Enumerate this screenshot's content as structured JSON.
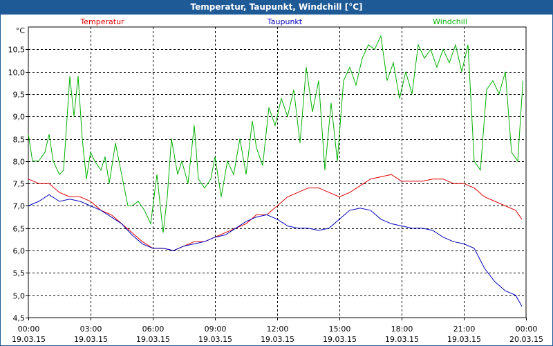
{
  "window": {
    "title": "Temperatur, Taupunkt, Windchill [°C]"
  },
  "chart_data": {
    "type": "line",
    "unit_label": "°C",
    "ylim": [
      4.5,
      11.0
    ],
    "y_ticks": [
      "4,5",
      "5,0",
      "5,5",
      "6,0",
      "6,5",
      "7,0",
      "7,5",
      "8,0",
      "8,5",
      "9,0",
      "9,5",
      "10,0",
      "10,5"
    ],
    "y_tick_values": [
      4.5,
      5.0,
      5.5,
      6.0,
      6.5,
      7.0,
      7.5,
      8.0,
      8.5,
      9.0,
      9.5,
      10.0,
      10.5
    ],
    "x_range_hours": [
      0,
      24
    ],
    "x_ticks": [
      {
        "time": "00:00",
        "date": "19.03.15"
      },
      {
        "time": "03:00",
        "date": "19.03.15"
      },
      {
        "time": "06:00",
        "date": "19.03.15"
      },
      {
        "time": "09:00",
        "date": "19.03.15"
      },
      {
        "time": "12:00",
        "date": "19.03.15"
      },
      {
        "time": "15:00",
        "date": "19.03.15"
      },
      {
        "time": "18:00",
        "date": "19.03.15"
      },
      {
        "time": "21:00",
        "date": "19.03.15"
      },
      {
        "time": "00:00",
        "date": "20.03.15"
      }
    ],
    "grid": true,
    "legend_placement": "top",
    "series": [
      {
        "name": "Temperatur",
        "color": "#e00000",
        "x": [
          0,
          0.5,
          1,
          1.5,
          2,
          2.5,
          3,
          3.5,
          4,
          4.5,
          5,
          5.5,
          6,
          6.5,
          7,
          7.5,
          8,
          8.5,
          9,
          9.5,
          10,
          10.5,
          11,
          11.5,
          12,
          12.5,
          13,
          13.5,
          14,
          14.5,
          15,
          15.5,
          16,
          16.5,
          17,
          17.5,
          18,
          18.5,
          19,
          19.5,
          20,
          20.5,
          21,
          21.5,
          22,
          22.5,
          23,
          23.5,
          23.8
        ],
        "y": [
          7.6,
          7.5,
          7.5,
          7.3,
          7.2,
          7.2,
          7.1,
          6.9,
          6.8,
          6.6,
          6.4,
          6.2,
          6.05,
          6.05,
          6.0,
          6.1,
          6.2,
          6.2,
          6.3,
          6.4,
          6.5,
          6.6,
          6.8,
          6.8,
          7.0,
          7.2,
          7.3,
          7.4,
          7.4,
          7.3,
          7.2,
          7.3,
          7.45,
          7.6,
          7.65,
          7.7,
          7.55,
          7.55,
          7.55,
          7.6,
          7.6,
          7.5,
          7.5,
          7.4,
          7.2,
          7.1,
          7.0,
          6.9,
          6.7
        ]
      },
      {
        "name": "Taupunkt",
        "color": "#0000c0",
        "x": [
          0,
          0.5,
          1,
          1.5,
          2,
          2.5,
          3,
          3.5,
          4,
          4.5,
          5,
          5.5,
          6,
          6.5,
          7,
          7.5,
          8,
          8.5,
          9,
          9.5,
          10,
          10.5,
          11,
          11.5,
          12,
          12.5,
          13,
          13.5,
          14,
          14.5,
          15,
          15.5,
          16,
          16.5,
          17,
          17.5,
          18,
          18.5,
          19,
          19.5,
          20,
          20.5,
          21,
          21.5,
          22,
          22.5,
          23,
          23.5,
          23.8
        ],
        "y": [
          7.0,
          7.1,
          7.25,
          7.1,
          7.15,
          7.1,
          7.0,
          6.9,
          6.75,
          6.6,
          6.35,
          6.15,
          6.05,
          6.05,
          6.0,
          6.1,
          6.15,
          6.2,
          6.3,
          6.35,
          6.5,
          6.65,
          6.75,
          6.8,
          6.7,
          6.55,
          6.5,
          6.5,
          6.45,
          6.5,
          6.7,
          6.9,
          6.95,
          6.9,
          6.7,
          6.6,
          6.55,
          6.5,
          6.5,
          6.45,
          6.3,
          6.2,
          6.15,
          6.05,
          5.6,
          5.3,
          5.1,
          5.0,
          4.75
        ]
      },
      {
        "name": "Windchill",
        "color": "#00b000",
        "x": [
          0,
          0.2,
          0.5,
          0.8,
          1,
          1.2,
          1.5,
          1.7,
          2,
          2.2,
          2.4,
          2.6,
          2.8,
          3,
          3.2,
          3.5,
          3.7,
          3.9,
          4.2,
          4.5,
          4.8,
          5,
          5.3,
          5.6,
          5.9,
          6.2,
          6.5,
          6.7,
          6.9,
          7.2,
          7.4,
          7.7,
          8,
          8.2,
          8.5,
          8.8,
          9,
          9.3,
          9.6,
          9.9,
          10.2,
          10.5,
          10.8,
          11,
          11.3,
          11.6,
          11.9,
          12.2,
          12.5,
          12.8,
          13.1,
          13.4,
          13.7,
          14,
          14.3,
          14.6,
          14.9,
          15.2,
          15.5,
          15.8,
          16.1,
          16.4,
          16.7,
          17,
          17.3,
          17.6,
          17.9,
          18.2,
          18.5,
          18.8,
          19.1,
          19.4,
          19.7,
          20,
          20.3,
          20.6,
          20.9,
          21.2,
          21.5,
          21.8,
          22.1,
          22.4,
          22.7,
          23,
          23.3,
          23.6,
          23.85
        ],
        "y": [
          8.6,
          8.0,
          8.0,
          8.2,
          8.6,
          8.0,
          7.7,
          7.8,
          9.9,
          9.0,
          9.9,
          8.5,
          7.6,
          8.2,
          8.0,
          7.8,
          8.1,
          7.5,
          8.4,
          7.7,
          7.0,
          7.0,
          7.1,
          6.9,
          6.6,
          7.7,
          6.4,
          7.2,
          8.5,
          7.7,
          8.0,
          7.5,
          8.8,
          7.6,
          7.4,
          7.6,
          8.1,
          7.2,
          8.0,
          7.7,
          8.5,
          7.7,
          8.9,
          8.3,
          7.9,
          9.2,
          8.8,
          9.4,
          9.0,
          9.6,
          8.4,
          10.1,
          9.1,
          9.8,
          7.8,
          9.3,
          8.0,
          9.8,
          10.1,
          9.7,
          10.3,
          10.6,
          10.5,
          10.8,
          9.8,
          10.2,
          9.4,
          10.0,
          9.5,
          10.6,
          10.3,
          10.5,
          10.1,
          10.5,
          10.2,
          10.6,
          10.0,
          10.6,
          8.0,
          7.8,
          9.6,
          9.8,
          9.5,
          10.0,
          8.2,
          8.0,
          9.8
        ]
      }
    ]
  }
}
